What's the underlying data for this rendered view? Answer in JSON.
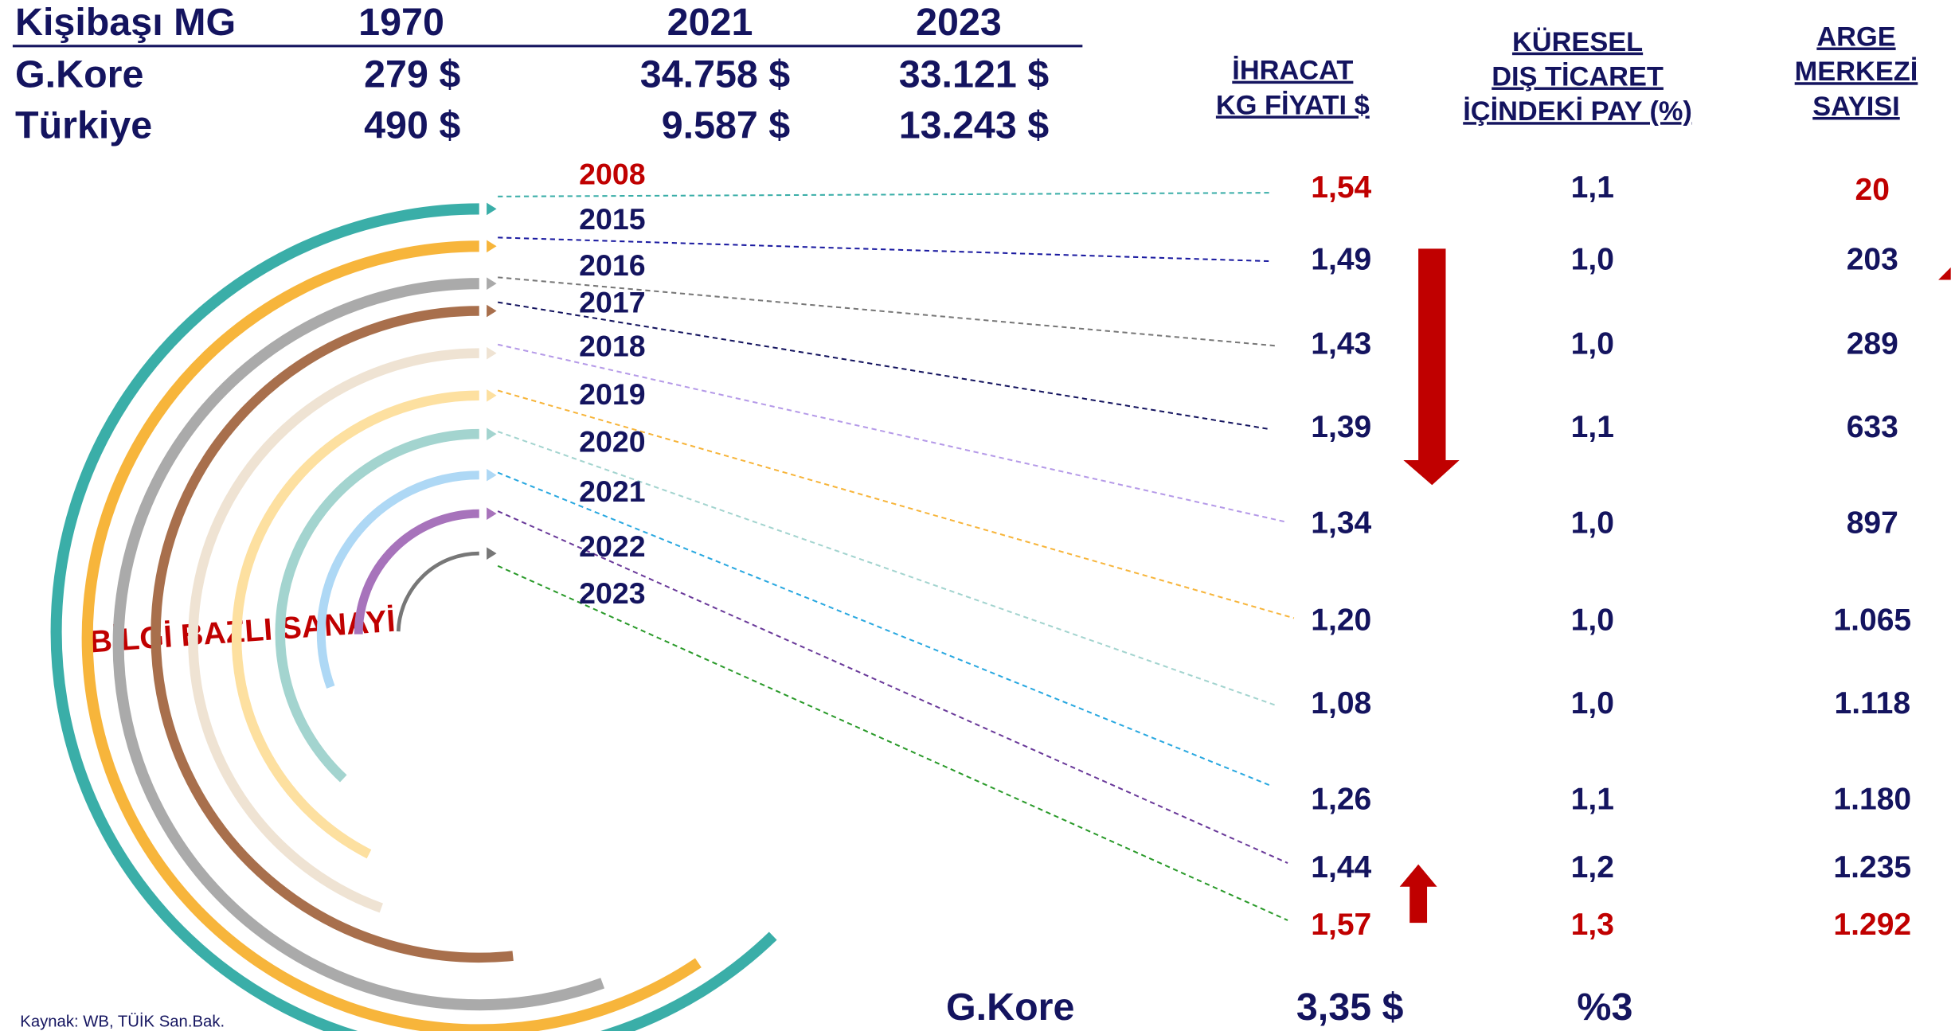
{
  "top_table": {
    "header": [
      "Kişibaşı MG",
      "1970",
      "2021",
      "2023"
    ],
    "rows": [
      [
        "G.Kore",
        "279 $",
        "34.758 $",
        "33.121 $"
      ],
      [
        "Türkiye",
        "490 $",
        "9.587 $",
        "13.243 $"
      ]
    ]
  },
  "column_headers": [
    [
      "İHRACAT",
      "KG FİYATI $"
    ],
    [
      "KÜRESEL",
      "DIŞ TİCARET",
      "İÇİNDEKİ PAY (%)"
    ],
    [
      "ARGE",
      "MERKEZİ",
      "SAYISI"
    ]
  ],
  "years": [
    "2008",
    "2015",
    "2016",
    "2017",
    "2018",
    "2019",
    "2020",
    "2021",
    "2022",
    "2023"
  ],
  "rows": [
    [
      "1,54",
      "1,1",
      "20"
    ],
    [
      "1,49",
      "1,0",
      "203"
    ],
    [
      "1,43",
      "1,0",
      "289"
    ],
    [
      "1,39",
      "1,1",
      "633"
    ],
    [
      "1,34",
      "1,0",
      "897"
    ],
    [
      "1,20",
      "1,0",
      "1.065"
    ],
    [
      "1,08",
      "1,0",
      "1.118"
    ],
    [
      "1,26",
      "1,1",
      "1.180"
    ],
    [
      "1,44",
      "1,2",
      "1.235"
    ],
    [
      "1,57",
      "1,3",
      "1.292"
    ]
  ],
  "footer": [
    "G.Kore",
    "3,35 $",
    "%3"
  ],
  "arc_label": "BİLGİ BAZLI SANAYİ",
  "source": "Kaynak: WB, TÜİK San.Bak."
}
